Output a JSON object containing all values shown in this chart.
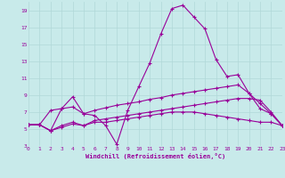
{
  "xlabel": "Windchill (Refroidissement éolien,°C)",
  "background_color": "#c8eaea",
  "grid_color": "#b0d8d8",
  "line_color": "#990099",
  "xlim": [
    0,
    23
  ],
  "ylim": [
    3,
    20
  ],
  "xticks": [
    0,
    1,
    2,
    3,
    4,
    5,
    6,
    7,
    8,
    9,
    10,
    11,
    12,
    13,
    14,
    15,
    16,
    17,
    18,
    19,
    20,
    21,
    22,
    23
  ],
  "yticks": [
    3,
    5,
    7,
    9,
    11,
    13,
    15,
    17,
    19
  ],
  "series1_x": [
    0,
    1,
    2,
    3,
    4,
    5,
    6,
    7,
    8,
    9,
    10,
    11,
    12,
    13,
    14,
    15,
    16,
    17,
    18,
    19,
    20,
    21,
    22,
    23
  ],
  "series1_y": [
    5.5,
    5.5,
    7.2,
    7.4,
    8.8,
    6.8,
    6.6,
    5.4,
    3.2,
    7.2,
    10.0,
    12.8,
    16.2,
    19.2,
    19.6,
    18.2,
    16.8,
    13.2,
    11.2,
    11.4,
    9.2,
    7.4,
    6.8,
    5.4
  ],
  "series2_x": [
    0,
    1,
    2,
    3,
    4,
    5,
    6,
    7,
    8,
    9,
    10,
    11,
    12,
    13,
    14,
    15,
    16,
    17,
    18,
    19,
    20,
    21,
    22,
    23
  ],
  "series2_y": [
    5.5,
    5.5,
    4.8,
    7.4,
    7.6,
    6.8,
    7.2,
    7.5,
    7.8,
    8.0,
    8.2,
    8.5,
    8.7,
    9.0,
    9.2,
    9.4,
    9.6,
    9.8,
    10.0,
    10.2,
    9.2,
    8.0,
    6.8,
    5.4
  ],
  "series3_x": [
    0,
    1,
    2,
    3,
    4,
    5,
    6,
    7,
    8,
    9,
    10,
    11,
    12,
    13,
    14,
    15,
    16,
    17,
    18,
    19,
    20,
    21,
    22,
    23
  ],
  "series3_y": [
    5.5,
    5.5,
    4.8,
    5.4,
    5.8,
    5.4,
    6.0,
    6.2,
    6.4,
    6.6,
    6.8,
    7.0,
    7.2,
    7.4,
    7.6,
    7.8,
    8.0,
    8.2,
    8.4,
    8.6,
    8.6,
    8.4,
    7.0,
    5.4
  ],
  "series4_x": [
    0,
    1,
    2,
    3,
    4,
    5,
    6,
    7,
    8,
    9,
    10,
    11,
    12,
    13,
    14,
    15,
    16,
    17,
    18,
    19,
    20,
    21,
    22,
    23
  ],
  "series4_y": [
    5.5,
    5.5,
    4.8,
    5.2,
    5.6,
    5.4,
    5.8,
    5.8,
    6.0,
    6.2,
    6.4,
    6.6,
    6.8,
    7.0,
    7.0,
    7.0,
    6.8,
    6.6,
    6.4,
    6.2,
    6.0,
    5.8,
    5.8,
    5.4
  ]
}
